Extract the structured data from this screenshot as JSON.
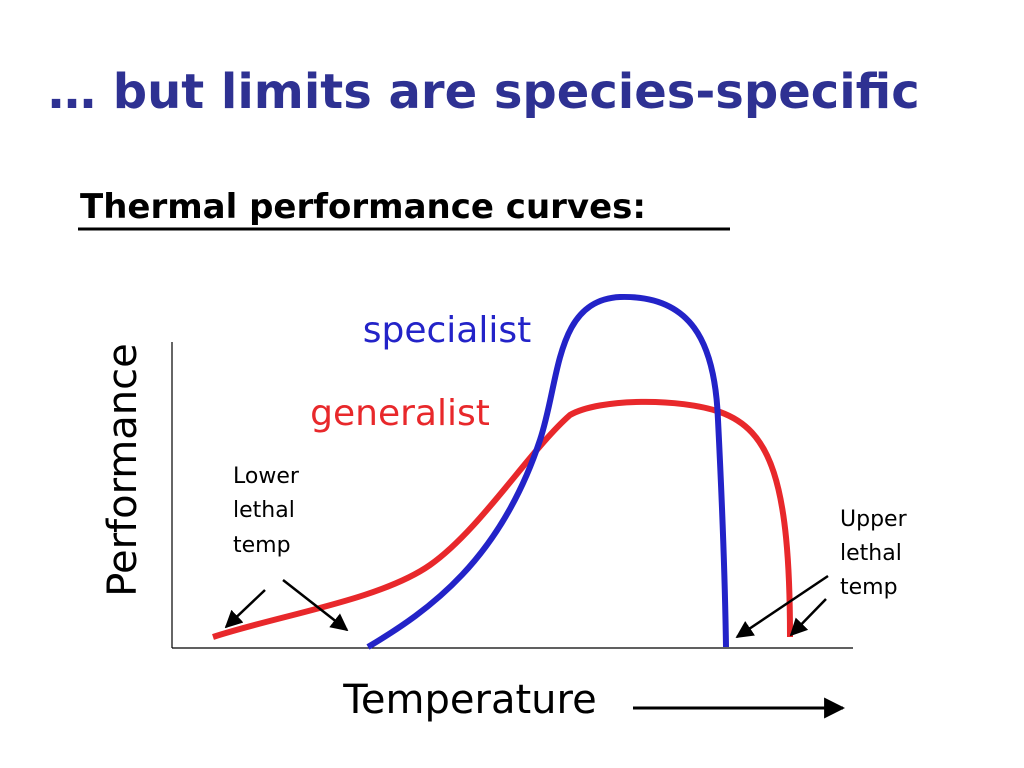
{
  "title": "… but limits are species-specific",
  "subtitle": "Thermal performance curves:",
  "diagram": {
    "y_axis_label": "Performance",
    "x_axis_label": "Temperature",
    "curves": [
      {
        "label": "specialist"
      },
      {
        "label": "generalist"
      }
    ],
    "annotations": [
      {
        "lines": [
          "Lower",
          "lethal",
          "temp"
        ]
      },
      {
        "lines": [
          "Upper",
          "lethal",
          "temp"
        ]
      }
    ]
  }
}
